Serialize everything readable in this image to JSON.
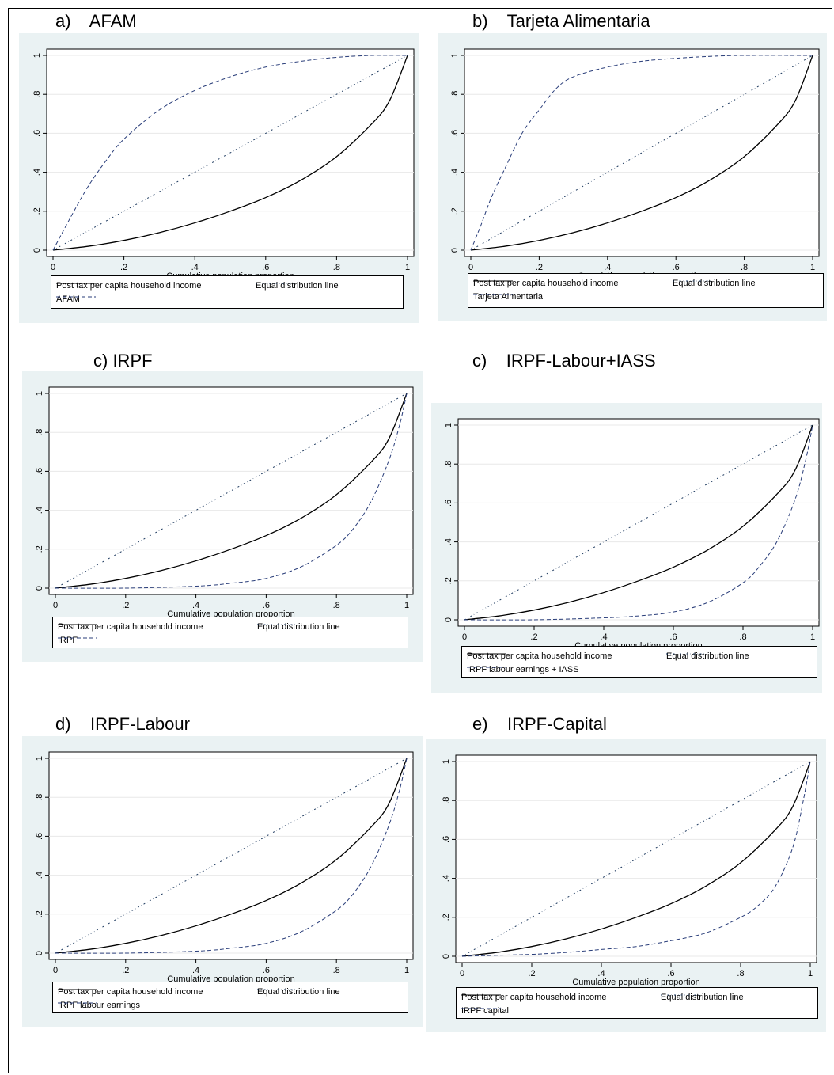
{
  "colors": {
    "panel_bg": "#eaf2f3",
    "plot_bg": "#ffffff",
    "income_line": "#000000",
    "equal_line": "#1e3a5f",
    "benefit_line": "#2a3e7a"
  },
  "panels": [
    {
      "heading": "a)    AFAM",
      "chart_data": {
        "type": "line",
        "xlabel": "Cumulative population proportion",
        "ylabel": "",
        "xlim": [
          0,
          1
        ],
        "ylim": [
          0,
          1
        ],
        "xticks": [
          "0",
          ".2",
          ".4",
          ".6",
          ".8",
          "1"
        ],
        "yticks": [
          "0",
          ".2",
          ".4",
          ".6",
          ".8",
          "1"
        ],
        "grid": true,
        "legend_position": "bottom",
        "series": [
          {
            "name": "Post tax per capita household income",
            "style": "solid",
            "x": [
              0,
              0.1,
              0.2,
              0.3,
              0.4,
              0.5,
              0.6,
              0.7,
              0.8,
              0.9,
              0.95,
              1
            ],
            "y": [
              0,
              0.02,
              0.05,
              0.09,
              0.14,
              0.2,
              0.27,
              0.36,
              0.48,
              0.65,
              0.77,
              1
            ]
          },
          {
            "name": "Equal distribution line",
            "style": "dashdot",
            "x": [
              0,
              1
            ],
            "y": [
              0,
              1
            ]
          },
          {
            "name": "AFAM",
            "style": "dashed",
            "x": [
              0,
              0.05,
              0.1,
              0.15,
              0.2,
              0.3,
              0.4,
              0.5,
              0.6,
              0.7,
              0.8,
              0.9,
              1
            ],
            "y": [
              0,
              0.17,
              0.33,
              0.46,
              0.57,
              0.72,
              0.82,
              0.89,
              0.94,
              0.97,
              0.99,
              1.0,
              1
            ]
          }
        ]
      }
    },
    {
      "heading": "b)    Tarjeta Alimentaria",
      "chart_data": {
        "type": "line",
        "xlabel": "Cumulative population proportion",
        "ylabel": "",
        "xlim": [
          0,
          1
        ],
        "ylim": [
          0,
          1
        ],
        "xticks": [
          "0",
          ".2",
          ".4",
          ".6",
          ".8",
          "1"
        ],
        "yticks": [
          "0",
          ".2",
          ".4",
          ".6",
          ".8",
          "1"
        ],
        "grid": true,
        "legend_position": "bottom",
        "series": [
          {
            "name": "Post tax per capita household income",
            "style": "solid",
            "x": [
              0,
              0.1,
              0.2,
              0.3,
              0.4,
              0.5,
              0.6,
              0.7,
              0.8,
              0.9,
              0.95,
              1
            ],
            "y": [
              0,
              0.02,
              0.05,
              0.09,
              0.14,
              0.2,
              0.27,
              0.36,
              0.48,
              0.65,
              0.77,
              1
            ]
          },
          {
            "name": "Equal distribution line",
            "style": "dashdot",
            "x": [
              0,
              1
            ],
            "y": [
              0,
              1
            ]
          },
          {
            "name": "Tarjeta Aimentaria",
            "style": "dashed",
            "x": [
              0,
              0.03,
              0.06,
              0.1,
              0.15,
              0.2,
              0.25,
              0.3,
              0.4,
              0.5,
              0.6,
              0.7,
              0.8,
              1
            ],
            "y": [
              0,
              0.13,
              0.27,
              0.42,
              0.6,
              0.72,
              0.83,
              0.89,
              0.94,
              0.97,
              0.985,
              0.995,
              1.0,
              1
            ]
          }
        ]
      }
    },
    {
      "heading": "c) IRPF",
      "chart_data": {
        "type": "line",
        "xlabel": "Cumulative population proportion",
        "ylabel": "",
        "xlim": [
          0,
          1
        ],
        "ylim": [
          0,
          1
        ],
        "xticks": [
          "0",
          ".2",
          ".4",
          ".6",
          ".8",
          "1"
        ],
        "yticks": [
          "0",
          ".2",
          ".4",
          ".6",
          ".8",
          "1"
        ],
        "grid": true,
        "legend_position": "bottom",
        "series": [
          {
            "name": "Post tax per capita household income",
            "style": "solid",
            "x": [
              0,
              0.1,
              0.2,
              0.3,
              0.4,
              0.5,
              0.6,
              0.7,
              0.8,
              0.9,
              0.95,
              1
            ],
            "y": [
              0,
              0.02,
              0.05,
              0.09,
              0.14,
              0.2,
              0.27,
              0.36,
              0.48,
              0.65,
              0.77,
              1
            ]
          },
          {
            "name": "Equal distribution line",
            "style": "dashdot",
            "x": [
              0,
              1
            ],
            "y": [
              0,
              1
            ]
          },
          {
            "name": "IRPF",
            "style": "dashed",
            "x": [
              0,
              0.2,
              0.4,
              0.5,
              0.6,
              0.7,
              0.8,
              0.85,
              0.9,
              0.95,
              0.98,
              1
            ],
            "y": [
              0,
              0.0,
              0.01,
              0.025,
              0.05,
              0.11,
              0.22,
              0.31,
              0.45,
              0.66,
              0.84,
              1
            ]
          }
        ]
      }
    },
    {
      "heading": "c)    IRPF-Labour+IASS",
      "chart_data": {
        "type": "line",
        "xlabel": "Cumulative population proportion",
        "ylabel": "",
        "xlim": [
          0,
          1
        ],
        "ylim": [
          0,
          1
        ],
        "xticks": [
          "0",
          ".2",
          ".4",
          ".6",
          ".8",
          "1"
        ],
        "yticks": [
          "0",
          ".2",
          ".4",
          ".6",
          ".8",
          "1"
        ],
        "grid": true,
        "legend_position": "bottom",
        "series": [
          {
            "name": "Post tax per capita household income",
            "style": "solid",
            "x": [
              0,
              0.1,
              0.2,
              0.3,
              0.4,
              0.5,
              0.6,
              0.7,
              0.8,
              0.9,
              0.95,
              1
            ],
            "y": [
              0,
              0.02,
              0.05,
              0.09,
              0.14,
              0.2,
              0.27,
              0.36,
              0.48,
              0.65,
              0.77,
              1
            ]
          },
          {
            "name": "Equal distribution line",
            "style": "dashdot",
            "x": [
              0,
              1
            ],
            "y": [
              0,
              1
            ]
          },
          {
            "name": "IRPF labour earnings + IASS",
            "style": "dashed",
            "x": [
              0,
              0.2,
              0.4,
              0.5,
              0.6,
              0.7,
              0.8,
              0.85,
              0.9,
              0.95,
              0.98,
              1
            ],
            "y": [
              0,
              0.0,
              0.01,
              0.02,
              0.04,
              0.09,
              0.19,
              0.28,
              0.41,
              0.62,
              0.82,
              1
            ]
          }
        ]
      }
    },
    {
      "heading": "d)    IRPF-Labour",
      "chart_data": {
        "type": "line",
        "xlabel": "Cumulative population proportion",
        "ylabel": "",
        "xlim": [
          0,
          1
        ],
        "ylim": [
          0,
          1
        ],
        "xticks": [
          "0",
          ".2",
          ".4",
          ".6",
          ".8",
          "1"
        ],
        "yticks": [
          "0",
          ".2",
          ".4",
          ".6",
          ".8",
          "1"
        ],
        "grid": true,
        "legend_position": "bottom",
        "series": [
          {
            "name": "Post tax per capita household income",
            "style": "solid",
            "x": [
              0,
              0.1,
              0.2,
              0.3,
              0.4,
              0.5,
              0.6,
              0.7,
              0.8,
              0.9,
              0.95,
              1
            ],
            "y": [
              0,
              0.02,
              0.05,
              0.09,
              0.14,
              0.2,
              0.27,
              0.36,
              0.48,
              0.65,
              0.77,
              1
            ]
          },
          {
            "name": "Equal distribution line",
            "style": "dashdot",
            "x": [
              0,
              1
            ],
            "y": [
              0,
              1
            ]
          },
          {
            "name": "IRPF labour earnings",
            "style": "dashed",
            "x": [
              0,
              0.2,
              0.4,
              0.5,
              0.6,
              0.7,
              0.8,
              0.85,
              0.9,
              0.95,
              0.98,
              1
            ],
            "y": [
              0,
              0.0,
              0.01,
              0.025,
              0.05,
              0.11,
              0.22,
              0.31,
              0.45,
              0.66,
              0.84,
              1
            ]
          }
        ]
      }
    },
    {
      "heading": "e)    IRPF-Capital",
      "chart_data": {
        "type": "line",
        "xlabel": "Cumulative population proportion",
        "ylabel": "",
        "xlim": [
          0,
          1
        ],
        "ylim": [
          0,
          1
        ],
        "xticks": [
          "0",
          ".2",
          ".4",
          ".6",
          ".8",
          "1"
        ],
        "yticks": [
          "0",
          ".2",
          ".4",
          ".6",
          ".8",
          "1"
        ],
        "grid": true,
        "legend_position": "bottom",
        "series": [
          {
            "name": "Post tax per capita household income",
            "style": "solid",
            "x": [
              0,
              0.1,
              0.2,
              0.3,
              0.4,
              0.5,
              0.6,
              0.7,
              0.8,
              0.9,
              0.95,
              1
            ],
            "y": [
              0,
              0.02,
              0.05,
              0.09,
              0.14,
              0.2,
              0.27,
              0.36,
              0.48,
              0.65,
              0.77,
              1
            ]
          },
          {
            "name": "Equal distribution line",
            "style": "dashdot",
            "x": [
              0,
              1
            ],
            "y": [
              0,
              1
            ]
          },
          {
            "name": "IRPF capital",
            "style": "dashed",
            "x": [
              0,
              0.1,
              0.2,
              0.3,
              0.4,
              0.5,
              0.6,
              0.7,
              0.8,
              0.85,
              0.9,
              0.95,
              0.98,
              1
            ],
            "y": [
              0,
              0.005,
              0.01,
              0.02,
              0.035,
              0.05,
              0.08,
              0.12,
              0.2,
              0.26,
              0.36,
              0.56,
              0.8,
              1
            ]
          }
        ]
      }
    }
  ]
}
